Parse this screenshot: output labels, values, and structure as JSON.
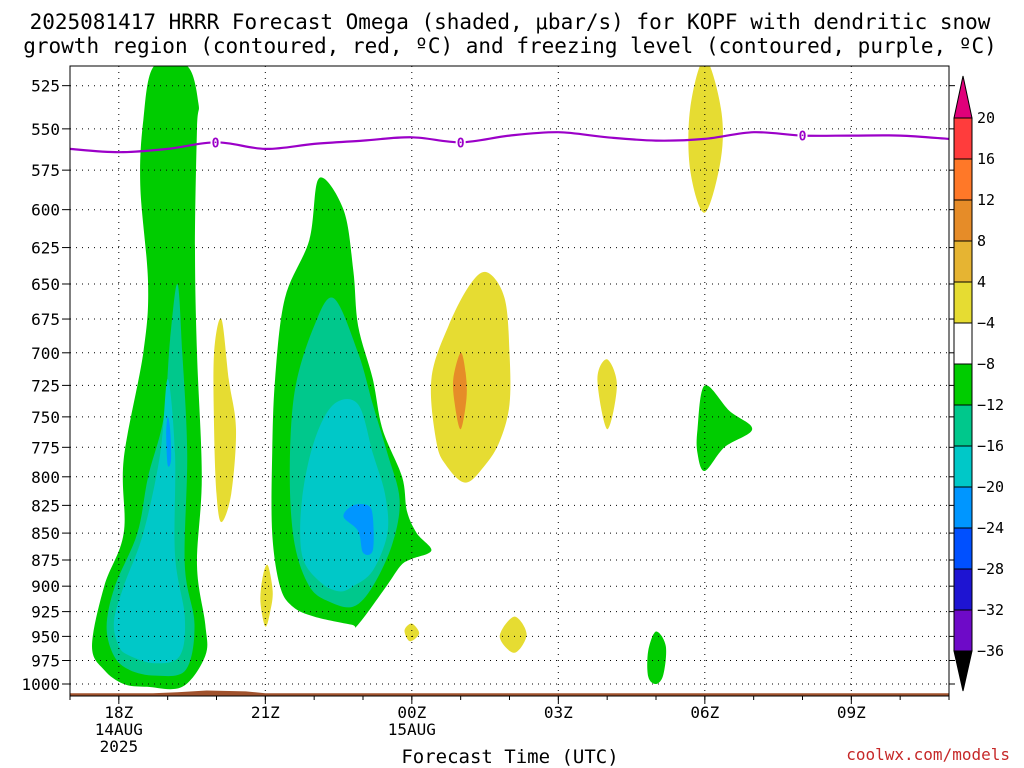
{
  "title": {
    "line1": "2025081417 HRRR Forecast Omega (shaded, μbar/s) for KOPF with dendritic snow",
    "line2": "growth region (contoured, red, ºC) and freezing level (contoured, purple, ºC)"
  },
  "credit": "coolwx.com/models",
  "colors": {
    "green_dark": "#00cc00",
    "green_teal": "#00c88c",
    "cyan": "#00c8c8",
    "blue_light": "#0096ff",
    "yellow": "#e6dc32",
    "orange": "#e6a030",
    "freezing": "#9b00c8",
    "terrain": "#a0522d"
  },
  "chart_data": {
    "type": "heatmap",
    "title": "2025081417 HRRR Forecast Omega (shaded, μbar/s) for KOPF with dendritic snow growth region (contoured, red, ºC) and freezing level (contoured, purple, ºC)",
    "xlabel": "Forecast Time (UTC)",
    "ylabel": "",
    "x_units": "forecast hour since 2025-08-14 17Z",
    "xlim": [
      17,
      35
    ],
    "ylim": [
      1013,
      514
    ],
    "y_scale": "log-pressure",
    "grid": true,
    "x_ticks": [
      {
        "x": 18,
        "lines": [
          "18Z",
          "14AUG",
          "2025"
        ]
      },
      {
        "x": 21,
        "lines": [
          "21Z"
        ]
      },
      {
        "x": 24,
        "lines": [
          "00Z",
          "15AUG"
        ]
      },
      {
        "x": 27,
        "lines": [
          "03Z"
        ]
      },
      {
        "x": 30,
        "lines": [
          "06Z"
        ]
      },
      {
        "x": 33,
        "lines": [
          "09Z"
        ]
      }
    ],
    "y_ticks": [
      525,
      550,
      575,
      600,
      625,
      650,
      675,
      700,
      725,
      750,
      775,
      800,
      825,
      850,
      875,
      900,
      925,
      950,
      975,
      1000
    ],
    "colorbar": {
      "levels": [
        20,
        16,
        12,
        8,
        4,
        -4,
        -8,
        -12,
        -16,
        -20,
        -24,
        -28,
        -32,
        -36
      ],
      "colors": [
        "#e0007a",
        "#ff3c3c",
        "#ff7828",
        "#e68c28",
        "#e6b432",
        "#e6dc32",
        "#ffffff",
        "#00cc00",
        "#00c88c",
        "#00c8c8",
        "#0096ff",
        "#0050ff",
        "#1e14d2",
        "#6e0ac8",
        "#a000c8",
        "#a0a0a0",
        "#000000"
      ]
    },
    "freezing_level": {
      "label": "0",
      "x": [
        17,
        18,
        19,
        20,
        21,
        22,
        23,
        24,
        25,
        26,
        27,
        28,
        29,
        30,
        31,
        32,
        33,
        34,
        35
      ],
      "p": [
        562,
        564,
        562,
        558,
        562,
        559,
        557,
        555,
        558,
        554,
        552,
        555,
        557,
        556,
        552,
        554,
        554,
        554,
        556
      ],
      "label_x": [
        19.98,
        25.0,
        32.0
      ]
    },
    "regions": [
      {
        "fill": "#00cc00",
        "pts": [
          [
            18.58,
            1003
          ],
          [
            19.3,
            1003
          ],
          [
            19.77,
            970
          ],
          [
            19.77,
            938
          ],
          [
            19.6,
            880
          ],
          [
            19.7,
            800
          ],
          [
            19.6,
            700
          ],
          [
            19.56,
            625
          ],
          [
            19.6,
            550
          ],
          [
            19.63,
            535
          ],
          [
            19.4,
            514
          ],
          [
            18.72,
            514
          ],
          [
            18.5,
            545
          ],
          [
            18.44,
            585
          ],
          [
            18.6,
            650
          ],
          [
            18.5,
            700
          ],
          [
            18.1,
            785
          ],
          [
            18.1,
            850
          ],
          [
            17.7,
            900
          ],
          [
            17.45,
            960
          ],
          [
            17.7,
            985
          ],
          [
            18.1,
            1000
          ]
        ]
      },
      {
        "fill": "#00c88c",
        "pts": [
          [
            18.22,
            985
          ],
          [
            18.75,
            991
          ],
          [
            19.37,
            985
          ],
          [
            19.55,
            938
          ],
          [
            19.35,
            880
          ],
          [
            19.4,
            780
          ],
          [
            19.3,
            700
          ],
          [
            19.2,
            650
          ],
          [
            19.05,
            690
          ],
          [
            18.92,
            750
          ],
          [
            18.6,
            800
          ],
          [
            18.38,
            850
          ],
          [
            17.92,
            900
          ],
          [
            17.75,
            940
          ],
          [
            17.9,
            970
          ]
        ]
      },
      {
        "fill": "#00c8c8",
        "pts": [
          [
            18.22,
            970
          ],
          [
            18.75,
            978
          ],
          [
            19.25,
            970
          ],
          [
            19.35,
            930
          ],
          [
            19.15,
            870
          ],
          [
            19.15,
            780
          ],
          [
            19.0,
            720
          ],
          [
            18.85,
            780
          ],
          [
            18.5,
            850
          ],
          [
            18.1,
            900
          ],
          [
            17.9,
            935
          ],
          [
            18.0,
            960
          ]
        ]
      },
      {
        "fill": "#0096ff",
        "pts": [
          [
            19.0,
            790
          ],
          [
            19.07,
            785
          ],
          [
            19.05,
            760
          ],
          [
            19.0,
            750
          ],
          [
            18.97,
            765
          ]
        ]
      },
      {
        "fill": "#00cc00",
        "pts": [
          [
            22.76,
            938
          ],
          [
            22.9,
            938
          ],
          [
            23.48,
            900
          ],
          [
            23.78,
            880
          ],
          [
            24.0,
            874
          ],
          [
            24.4,
            866
          ],
          [
            24.1,
            850
          ],
          [
            23.9,
            830
          ],
          [
            23.8,
            800
          ],
          [
            23.4,
            760
          ],
          [
            23.2,
            720
          ],
          [
            22.9,
            680
          ],
          [
            22.8,
            640
          ],
          [
            22.6,
            600
          ],
          [
            22.1,
            580
          ],
          [
            21.9,
            620
          ],
          [
            21.4,
            660
          ],
          [
            21.2,
            720
          ],
          [
            21.14,
            780
          ],
          [
            21.14,
            850
          ],
          [
            21.3,
            900
          ],
          [
            21.56,
            920
          ],
          [
            22.0,
            930
          ]
        ]
      },
      {
        "fill": "#00c88c",
        "pts": [
          [
            22.8,
            920
          ],
          [
            23.2,
            900
          ],
          [
            23.6,
            860
          ],
          [
            23.75,
            820
          ],
          [
            23.5,
            780
          ],
          [
            23.2,
            740
          ],
          [
            22.9,
            700
          ],
          [
            22.4,
            660
          ],
          [
            22.0,
            680
          ],
          [
            21.6,
            730
          ],
          [
            21.5,
            800
          ],
          [
            21.6,
            860
          ],
          [
            21.9,
            900
          ],
          [
            22.3,
            915
          ]
        ]
      },
      {
        "fill": "#00c8c8",
        "pts": [
          [
            22.8,
            900
          ],
          [
            23.2,
            885
          ],
          [
            23.5,
            850
          ],
          [
            23.45,
            815
          ],
          [
            23.2,
            780
          ],
          [
            22.9,
            740
          ],
          [
            22.4,
            740
          ],
          [
            22.0,
            770
          ],
          [
            21.75,
            820
          ],
          [
            21.75,
            870
          ],
          [
            22.1,
            895
          ],
          [
            22.5,
            905
          ]
        ]
      },
      {
        "fill": "#0096ff",
        "pts": [
          [
            23.0,
            868
          ],
          [
            23.2,
            866
          ],
          [
            23.2,
            835
          ],
          [
            23.1,
            825
          ],
          [
            22.8,
            825
          ],
          [
            22.6,
            835
          ],
          [
            22.9,
            848
          ]
        ]
      },
      {
        "fill": "#e6dc32",
        "pts": [
          [
            21.0,
            940
          ],
          [
            21.1,
            925
          ],
          [
            21.15,
            905
          ],
          [
            21.05,
            880
          ],
          [
            20.95,
            890
          ],
          [
            20.9,
            915
          ]
        ]
      },
      {
        "fill": "#e6dc32",
        "pts": [
          [
            20.1,
            840
          ],
          [
            20.3,
            815
          ],
          [
            20.4,
            760
          ],
          [
            20.25,
            720
          ],
          [
            20.1,
            675
          ],
          [
            19.95,
            700
          ],
          [
            19.95,
            760
          ],
          [
            20.0,
            815
          ]
        ]
      },
      {
        "fill": "#e6dc32",
        "pts": [
          [
            25.1,
            805
          ],
          [
            25.5,
            790
          ],
          [
            25.8,
            770
          ],
          [
            26.0,
            740
          ],
          [
            26.0,
            700
          ],
          [
            25.9,
            660
          ],
          [
            25.55,
            642
          ],
          [
            25.2,
            650
          ],
          [
            24.75,
            680
          ],
          [
            24.4,
            720
          ],
          [
            24.5,
            770
          ],
          [
            24.7,
            790
          ]
        ]
      },
      {
        "fill": "#e68c28",
        "pts": [
          [
            25.0,
            760
          ],
          [
            25.12,
            735
          ],
          [
            25.1,
            715
          ],
          [
            25.0,
            700
          ],
          [
            24.85,
            720
          ],
          [
            24.88,
            740
          ]
        ]
      },
      {
        "fill": "#e6dc32",
        "pts": [
          [
            28.0,
            760
          ],
          [
            28.2,
            725
          ],
          [
            28.0,
            705
          ],
          [
            27.8,
            720
          ]
        ]
      },
      {
        "fill": "#e6dc32",
        "pts": [
          [
            26.1,
            967
          ],
          [
            26.35,
            948
          ],
          [
            26.1,
            930
          ],
          [
            25.8,
            950
          ]
        ]
      },
      {
        "fill": "#e6dc32",
        "pts": [
          [
            23.96,
            955
          ],
          [
            24.15,
            947
          ],
          [
            24.0,
            937
          ],
          [
            23.85,
            944
          ]
        ]
      },
      {
        "fill": "#e6dc32",
        "pts": [
          [
            30.0,
            602
          ],
          [
            30.33,
            568
          ],
          [
            30.33,
            538
          ],
          [
            30.0,
            510
          ],
          [
            29.7,
            538
          ],
          [
            29.7,
            575
          ]
        ]
      },
      {
        "fill": "#00cc00",
        "pts": [
          [
            30.0,
            795
          ],
          [
            30.4,
            775
          ],
          [
            30.97,
            760
          ],
          [
            30.5,
            745
          ],
          [
            30.0,
            725
          ],
          [
            29.85,
            760
          ],
          [
            29.85,
            780
          ]
        ]
      },
      {
        "fill": "#00cc00",
        "pts": [
          [
            29.0,
            1000
          ],
          [
            29.15,
            990
          ],
          [
            29.2,
            960
          ],
          [
            29.0,
            945
          ],
          [
            28.84,
            965
          ],
          [
            28.84,
            992
          ]
        ]
      }
    ],
    "terrain": [
      [
        17,
        1010
      ],
      [
        18.7,
        1010
      ],
      [
        19.2,
        1009
      ],
      [
        19.8,
        1007
      ],
      [
        20.6,
        1008
      ],
      [
        21.0,
        1010
      ],
      [
        35,
        1010
      ]
    ]
  }
}
